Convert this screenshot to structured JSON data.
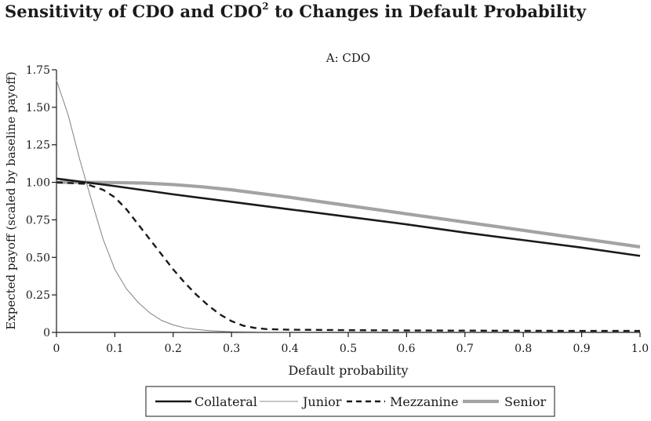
{
  "figure": {
    "title_main": "Sensitivity of CDO and CDO",
    "title_sup": "2",
    "title_end": " to Changes in Default Probability"
  },
  "chart_data": {
    "type": "line",
    "title": "A: CDO",
    "xlabel": "Default probability",
    "ylabel": "Expected payoff (scaled by baseline payoff)",
    "xlim": [
      0,
      1.0
    ],
    "ylim": [
      0,
      1.75
    ],
    "xticks": [
      0,
      0.1,
      0.2,
      0.3,
      0.4,
      0.5,
      0.6,
      0.7,
      0.8,
      0.9,
      1.0
    ],
    "xtick_labels": [
      "0",
      "0.1",
      "0.2",
      "0.3",
      "0.4",
      "0.5",
      "0.6",
      "0.7",
      "0.8",
      "0.9",
      "1.0"
    ],
    "yticks": [
      0,
      0.25,
      0.5,
      0.75,
      1.0,
      1.25,
      1.5,
      1.75
    ],
    "ytick_labels": [
      "0",
      "0.25",
      "0.50",
      "0.75",
      "1.00",
      "1.25",
      "1.50",
      "1.75"
    ],
    "grid": false,
    "legend_position": "bottom",
    "series": [
      {
        "name": "Collateral",
        "style": "solid-thick",
        "color": "#1a1a1a",
        "x": [
          0,
          0.05,
          0.1,
          0.2,
          0.3,
          0.4,
          0.5,
          0.6,
          0.7,
          0.8,
          0.9,
          1.0
        ],
        "y": [
          1.025,
          1.0,
          0.975,
          0.92,
          0.87,
          0.82,
          0.77,
          0.72,
          0.665,
          0.615,
          0.565,
          0.51
        ]
      },
      {
        "name": "Junior",
        "style": "solid-thin",
        "color": "#8c8c8c",
        "x": [
          0,
          0.02,
          0.04,
          0.06,
          0.08,
          0.1,
          0.12,
          0.14,
          0.16,
          0.18,
          0.2,
          0.22,
          0.24,
          0.26,
          0.28,
          0.3,
          0.35,
          0.4
        ],
        "y": [
          1.68,
          1.45,
          1.15,
          0.88,
          0.62,
          0.42,
          0.29,
          0.2,
          0.13,
          0.08,
          0.05,
          0.03,
          0.02,
          0.012,
          0.008,
          0.005,
          0.003,
          0.002
        ]
      },
      {
        "name": "Mezzanine",
        "style": "dashed",
        "color": "#1a1a1a",
        "x": [
          0,
          0.05,
          0.08,
          0.1,
          0.12,
          0.14,
          0.16,
          0.18,
          0.2,
          0.22,
          0.24,
          0.26,
          0.28,
          0.3,
          0.32,
          0.34,
          0.36,
          0.4,
          0.5,
          0.6,
          0.7,
          0.8,
          0.9,
          1.0
        ],
        "y": [
          1.0,
          0.99,
          0.95,
          0.9,
          0.82,
          0.72,
          0.62,
          0.52,
          0.42,
          0.33,
          0.25,
          0.18,
          0.12,
          0.075,
          0.045,
          0.03,
          0.022,
          0.018,
          0.015,
          0.013,
          0.012,
          0.011,
          0.01,
          0.01
        ]
      },
      {
        "name": "Senior",
        "style": "solid-thick-gray",
        "color": "#a3a3a3",
        "x": [
          0,
          0.05,
          0.1,
          0.15,
          0.2,
          0.25,
          0.3,
          0.35,
          0.4,
          0.5,
          0.6,
          0.7,
          0.8,
          0.9,
          1.0
        ],
        "y": [
          1.0,
          1.0,
          0.998,
          0.995,
          0.985,
          0.97,
          0.95,
          0.925,
          0.9,
          0.845,
          0.79,
          0.735,
          0.68,
          0.625,
          0.57
        ]
      }
    ]
  }
}
